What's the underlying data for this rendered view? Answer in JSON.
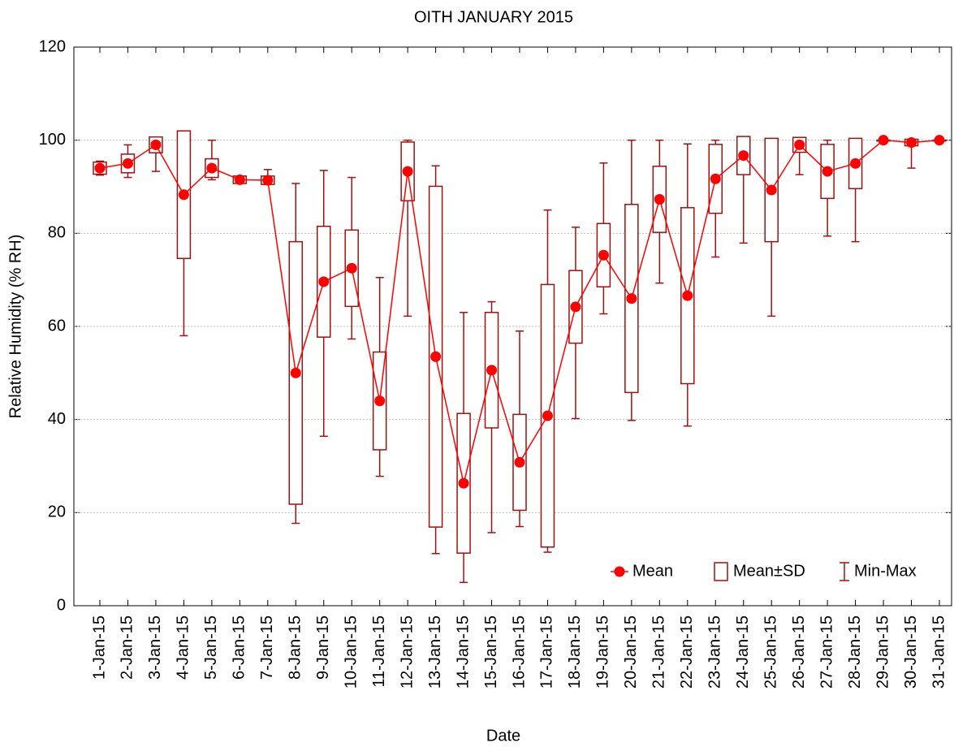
{
  "chart_data": {
    "type": "box",
    "title": "OITH JANUARY 2015",
    "x_label": "Date",
    "y_label": "Relative Humidity (% RH)",
    "categories": [
      "1-Jan-15",
      "2-Jan-15",
      "3-Jan-15",
      "4-Jan-15",
      "5-Jan-15",
      "6-Jan-15",
      "7-Jan-15",
      "8-Jan-15",
      "9-Jan-15",
      "10-Jan-15",
      "11-Jan-15",
      "12-Jan-15",
      "13-Jan-15",
      "14-Jan-15",
      "15-Jan-15",
      "16-Jan-15",
      "17-Jan-15",
      "18-Jan-15",
      "19-Jan-15",
      "20-Jan-15",
      "21-Jan-15",
      "22-Jan-15",
      "23-Jan-15",
      "24-Jan-15",
      "25-Jan-15",
      "26-Jan-15",
      "27-Jan-15",
      "28-Jan-15",
      "29-Jan-15",
      "30-Jan-15",
      "31-Jan-15"
    ],
    "series": [
      {
        "name": "Mean",
        "color": "#ff0000",
        "values": [
          94,
          95,
          99,
          88.3,
          94,
          91.5,
          91.4,
          50,
          69.6,
          72.5,
          44,
          93.3,
          53.5,
          26.3,
          50.6,
          30.8,
          40.8,
          64.2,
          75.3,
          66,
          87.3,
          66.6,
          91.7,
          96.7,
          89.3,
          99,
          93.3,
          95,
          100,
          99.5,
          100
        ]
      }
    ],
    "boxes": {
      "name": "Mean±SD",
      "color": "#a01010",
      "sd": [
        1.3,
        2,
        1.7,
        13.7,
        2,
        0.8,
        0.9,
        28.2,
        11.9,
        8.2,
        10.5,
        6.3,
        36.6,
        15,
        12.4,
        10.3,
        28.2,
        7.8,
        6.8,
        20.2,
        7.1,
        18.9,
        7.4,
        4.1,
        11.1,
        1.6,
        5.8,
        5.4,
        0,
        0.7,
        0
      ]
    },
    "whiskers": {
      "name": "Min-Max",
      "color": "#a01010",
      "min": [
        92.5,
        92,
        93.3,
        58,
        91.5,
        90.8,
        90.5,
        17.7,
        36.4,
        57.3,
        27.8,
        62.2,
        11.2,
        5,
        15.7,
        17,
        11.5,
        40.2,
        62.7,
        39.8,
        69.3,
        38.6,
        74.9,
        77.9,
        62.2,
        92.6,
        79.4,
        78.2,
        100,
        94,
        100
      ],
      "max": [
        95.5,
        99,
        100,
        100,
        100,
        92.3,
        93.7,
        90.7,
        93.5,
        92,
        70.5,
        100,
        94.5,
        63,
        65.3,
        59,
        85,
        81.3,
        95.1,
        100,
        100,
        99.2,
        100,
        100,
        100,
        100,
        100,
        100,
        100,
        100,
        100
      ]
    },
    "ylim": [
      0,
      120
    ],
    "yticks": [
      0,
      20,
      40,
      60,
      80,
      100,
      120
    ],
    "grid": true,
    "legend": "lower right"
  }
}
